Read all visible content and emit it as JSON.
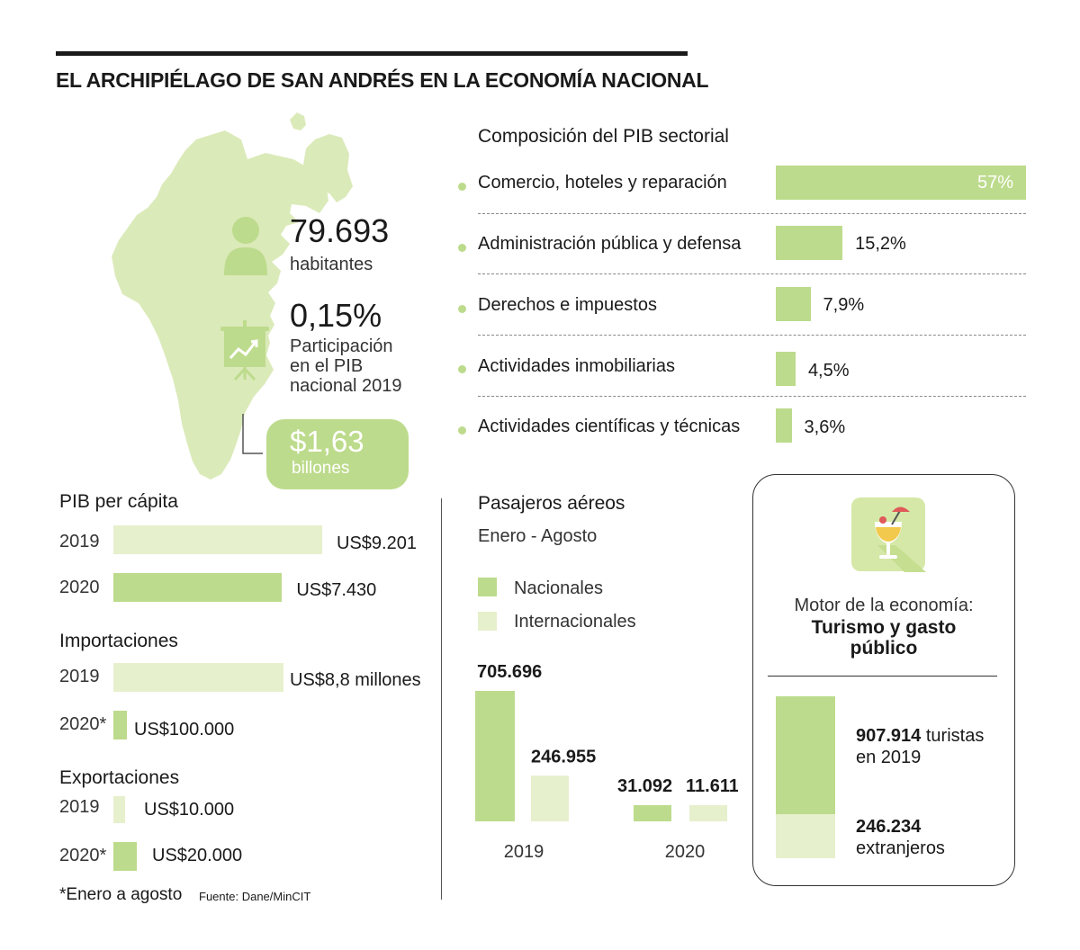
{
  "title": "EL ARCHIPIÉLAGO DE SAN ANDRÉS EN LA ECONOMÍA NACIONAL",
  "colors": {
    "accent": "#bddb8c",
    "accent_light": "#e6f0cc",
    "text": "#1a1a1a"
  },
  "population": {
    "value": "79.693",
    "label": "habitantes",
    "icon": "person-icon"
  },
  "pib_share": {
    "value": "0,15%",
    "label_lines": [
      "Participación",
      "en el PIB",
      "nacional 2019"
    ],
    "icon": "presentation-chart-icon"
  },
  "pib_total": {
    "value": "$1,63",
    "unit": "billones"
  },
  "cocktail_icon": "cocktail-icon",
  "sectorial": {
    "title": "Composición del PIB sectorial",
    "items": [
      {
        "label": "Comercio, hoteles y reparación",
        "value": 57,
        "display": "57%"
      },
      {
        "label": "Administración pública y defensa",
        "value": 15.2,
        "display": "15,2%"
      },
      {
        "label": "Derechos e impuestos",
        "value": 7.9,
        "display": "7,9%"
      },
      {
        "label": "Actividades inmobiliarias",
        "value": 4.5,
        "display": "4,5%"
      },
      {
        "label": "Actividades científicas y técnicas",
        "value": 3.6,
        "display": "3,6%"
      }
    ]
  },
  "per_capita": {
    "title": "PIB per cápita",
    "rows": [
      {
        "year": "2019",
        "value": 9201,
        "display": "US$9.201"
      },
      {
        "year": "2020",
        "value": 7430,
        "display": "US$7.430"
      }
    ]
  },
  "imports": {
    "title": "Importaciones",
    "rows": [
      {
        "year": "2019",
        "value": 8800000,
        "display": "US$8,8 millones"
      },
      {
        "year": "2020*",
        "value": 100000,
        "display": "US$100.000"
      }
    ]
  },
  "exports": {
    "title": "Exportaciones",
    "rows": [
      {
        "year": "2019",
        "value": 10000,
        "display": "US$10.000"
      },
      {
        "year": "2020*",
        "value": 20000,
        "display": "US$20.000"
      }
    ]
  },
  "passengers": {
    "title": "Pasajeros aéreos",
    "subtitle": "Enero - Agosto",
    "legend": [
      "Nacionales",
      "Internacionales"
    ]
  },
  "motor": {
    "label": "Motor de la economía:",
    "strong": [
      "Turismo y gasto",
      "público"
    ],
    "tourists_value": "907.914",
    "tourists_text1": "turistas",
    "tourists_text2": "en 2019",
    "foreign_value": "246.234",
    "foreign_text": "extranjeros"
  },
  "footnote": "*Enero a agosto",
  "source": "Fuente: Dane/MinCIT",
  "chart_data": [
    {
      "type": "bar",
      "orientation": "horizontal",
      "title": "Composición del PIB sectorial",
      "categories": [
        "Comercio, hoteles y reparación",
        "Administración pública y defensa",
        "Derechos e impuestos",
        "Actividades inmobiliarias",
        "Actividades científicas y técnicas"
      ],
      "values": [
        57,
        15.2,
        7.9,
        4.5,
        3.6
      ],
      "unit": "%"
    },
    {
      "type": "bar",
      "orientation": "horizontal",
      "title": "PIB per cápita",
      "categories": [
        "2019",
        "2020"
      ],
      "values": [
        9201,
        7430
      ],
      "unit": "US$"
    },
    {
      "type": "bar",
      "orientation": "horizontal",
      "title": "Importaciones",
      "categories": [
        "2019",
        "2020*"
      ],
      "values": [
        8800000,
        100000
      ],
      "unit": "US$"
    },
    {
      "type": "bar",
      "orientation": "horizontal",
      "title": "Exportaciones",
      "categories": [
        "2019",
        "2020*"
      ],
      "values": [
        10000,
        20000
      ],
      "unit": "US$"
    },
    {
      "type": "bar",
      "title": "Pasajeros aéreos",
      "subtitle": "Enero - Agosto",
      "categories": [
        "2019",
        "2020"
      ],
      "series": [
        {
          "name": "Nacionales",
          "values": [
            705696,
            31092
          ],
          "labels": [
            "705.696",
            "31.092"
          ]
        },
        {
          "name": "Internacionales",
          "values": [
            246955,
            11611
          ],
          "labels": [
            "246.955",
            "11.611"
          ]
        }
      ]
    },
    {
      "type": "bar",
      "stacked": true,
      "categories": [
        "2019"
      ],
      "series": [
        {
          "name": "turistas en 2019",
          "values": [
            907914
          ]
        },
        {
          "name": "extranjeros",
          "values": [
            246234
          ]
        }
      ]
    }
  ]
}
